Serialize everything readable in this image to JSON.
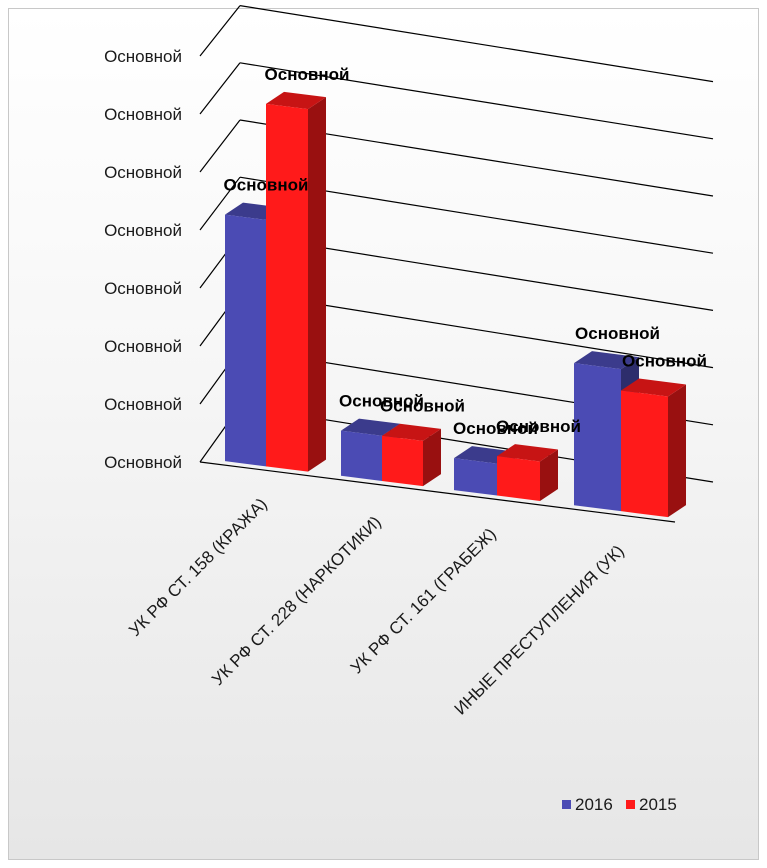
{
  "chart_data": {
    "type": "bar",
    "style": "3d-perspective-clustered",
    "categories": [
      "УК РФ СТ. 158 (КРАЖА)",
      "УК РФ СТ. 228 (НАРКОТИКИ)",
      "УК РФ СТ. 161 (ГРАБЕЖ)",
      "ИНЫЕ ПРЕСТУПЛЕНИЯ (УК)"
    ],
    "series": [
      {
        "name": "2016",
        "color": "#4b4bb4",
        "values": [
          4.25,
          0.78,
          0.55,
          2.45
        ],
        "labels": [
          "Основной",
          "Основной",
          "Основной",
          "Основной"
        ]
      },
      {
        "name": "2015",
        "color": "#ff1a1a",
        "values": [
          6.25,
          0.78,
          0.68,
          2.08
        ],
        "labels": [
          "Основной",
          "Основной",
          "Основной",
          "Основной"
        ]
      }
    ],
    "y_tick_labels": [
      "Основной",
      "Основной",
      "Основной",
      "Основной",
      "Основной",
      "Основной",
      "Основной",
      "Основной"
    ],
    "ylim": [
      0,
      7
    ],
    "grid": true,
    "legend_position": "bottom-right",
    "title": "",
    "xlabel": "",
    "ylabel": ""
  }
}
